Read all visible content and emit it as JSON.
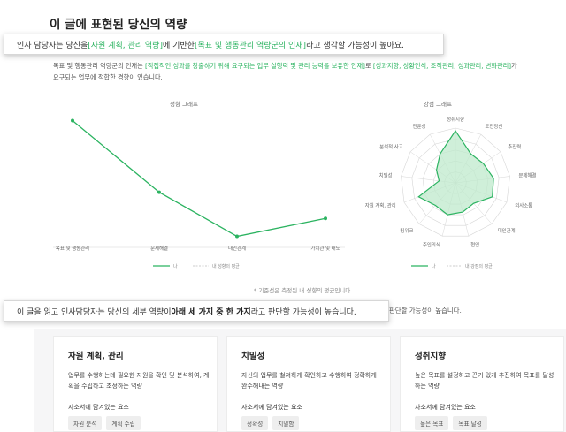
{
  "title": "이 글에 표현된 당신의 역량",
  "callout1": {
    "a": "인사 담당자는 당신을 ",
    "b": "[자원 계획, 관리 역량]",
    "c": "에 기반한 ",
    "d": "[목표 및 행동관리 역량군의 인재]",
    "e": "라고 생각할 가능성이 높아요."
  },
  "desc": {
    "a": "목표 및 행동관리 역량군의 인재는 ",
    "b": "[직접적인 성과를 창출하기 위해 요구되는 업무 실행력 및 관리 능력을 보유한 인재]",
    "c": "로 ",
    "d": "[성과지향, 상황인식, 조직관리, 성과관리, 변화관리]",
    "e": "가",
    "f": "요구되는 업무에 적합한 경향이 있습니다."
  },
  "line_chart": {
    "title": "성향 그래프",
    "legend_me": "나",
    "legend_avg": "내 성향의 평균",
    "chart_data": {
      "type": "line",
      "categories": [
        "목표 및 행동관리",
        "문제해결",
        "대인관계",
        "가치관 및 태도"
      ],
      "series": [
        {
          "name": "나",
          "values": [
            92,
            40,
            8,
            21
          ]
        },
        {
          "name": "내 성향의 평균",
          "values": [
            null,
            null,
            null,
            null
          ]
        }
      ],
      "ylim": [
        0,
        100
      ]
    }
  },
  "radar_chart": {
    "title": "강점 그래프",
    "legend_me": "나",
    "legend_avg": "내 강점의 평균",
    "chart_data": {
      "type": "radar",
      "categories": [
        "성취지향",
        "도전정신",
        "추진력",
        "문제해결",
        "의사소통",
        "대인관계",
        "협업",
        "주인의식",
        "팀워크",
        "자원 계획, 관리",
        "치밀성",
        "분석적 사고",
        "전문성"
      ],
      "series": [
        {
          "name": "나",
          "values": [
            0.95,
            0.6,
            0.62,
            0.7,
            0.72,
            0.5,
            0.55,
            0.6,
            0.55,
            0.72,
            0.3,
            0.42,
            0.6
          ]
        }
      ],
      "rlim": [
        0,
        1
      ]
    }
  },
  "footnote": "* 기준선은 측정된 내 성향의 평균입니다.",
  "callout2": {
    "a": "이 글을 읽고 인사담당자는 당신의 세부 역량이 ",
    "b": "아래 세 가지 중 한 가지",
    "c": "라고 판단할 가능성이 높습니다."
  },
  "callout2_tail": "판단할 가능성이 높습니다.",
  "cards": [
    {
      "title": "자원 계획, 관리",
      "desc": "업무를 수행하는데 필요한 자원을 확인 및 분석하여, 계획을 수립하고 조정하는 역량",
      "sub": "자소서에 담겨있는 요소",
      "tags": [
        "자원 분석",
        "계획 수립"
      ]
    },
    {
      "title": "치밀성",
      "desc": "자신의 업무를 철저하게 확인하고 수행하여 정확하게 완수해내는 역량",
      "sub": "자소서에 담겨있는 요소",
      "tags": [
        "정확성",
        "치밀함"
      ]
    },
    {
      "title": "성취지향",
      "desc": "높은 목표를 설정하고 끈기 있게 추진하여 목표를 달성하는 역량",
      "sub": "자소서에 담겨있는 요소",
      "tags": [
        "높은 목표",
        "목표 달성"
      ]
    }
  ],
  "colors": {
    "accent": "#2bb360",
    "radar_fill": "#bfe9cc",
    "grid": "#d6d6d6"
  }
}
